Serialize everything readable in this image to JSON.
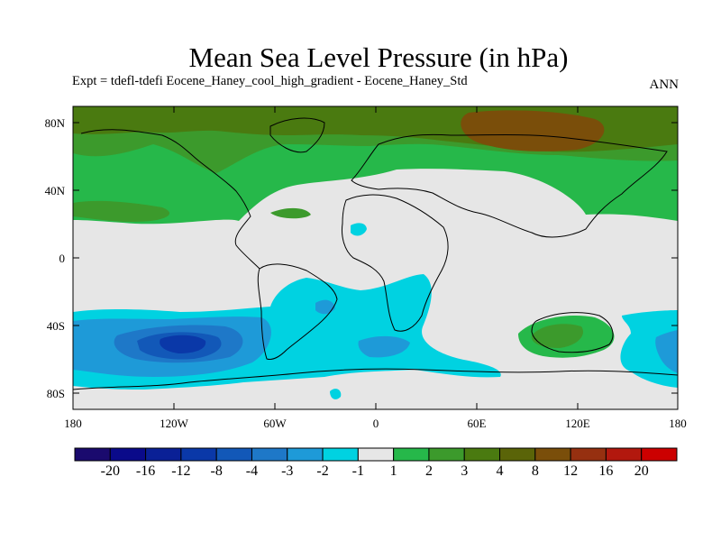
{
  "title": "Mean Sea Level Pressure (in hPa)",
  "subtitle": "Expt = tdefl-tdefi  Eocene_Haney_cool_high_gradient - Eocene_Haney_Std",
  "season": "ANN",
  "map": {
    "lat_ticks": [
      "80N",
      "40N",
      "0",
      "40S",
      "80S"
    ],
    "lon_ticks": [
      "180",
      "120W",
      "60W",
      "0",
      "60E",
      "120E",
      "180"
    ],
    "background_color": "#e6e6e6"
  },
  "colorbar": {
    "colors": [
      "#1a0a6e",
      "#0a0a8a",
      "#0a2096",
      "#0a38a8",
      "#1258b8",
      "#1e78c8",
      "#1e9ad8",
      "#00d2e1",
      "#e6e6e6",
      "#26b84a",
      "#3c9a2c",
      "#4a7a10",
      "#5a6408",
      "#7a4e0a",
      "#963010",
      "#b2180e",
      "#cc0000"
    ],
    "labels": [
      "-20",
      "-16",
      "-12",
      "-8",
      "-4",
      "-3",
      "-2",
      "-1",
      "1",
      "2",
      "3",
      "4",
      "8",
      "12",
      "16",
      "20"
    ]
  }
}
